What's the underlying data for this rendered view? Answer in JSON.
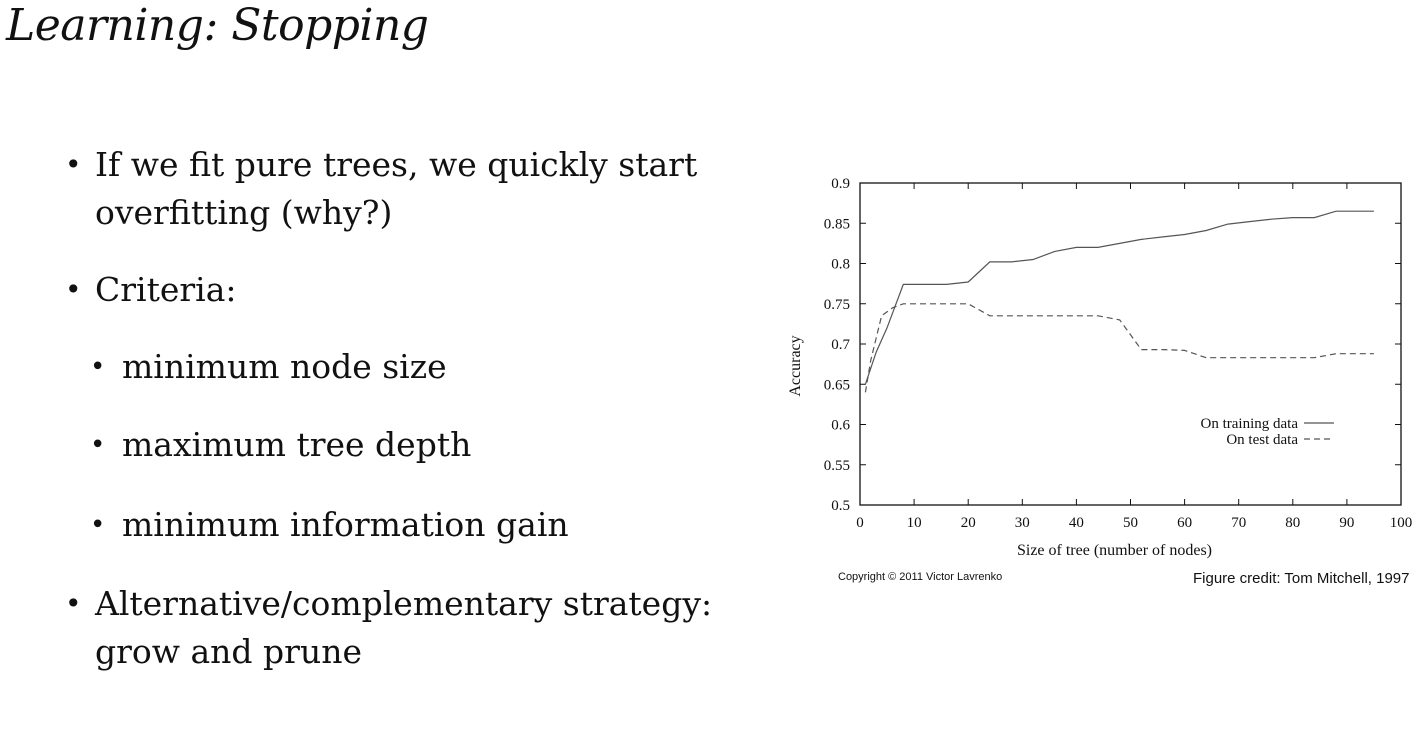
{
  "slide": {
    "title": "Learning: Stopping",
    "bullets": [
      {
        "level": 1,
        "lines": [
          "If we fit pure trees, we quickly start",
          "overfitting (why?)"
        ]
      },
      {
        "level": 1,
        "lines": [
          "Criteria:"
        ]
      },
      {
        "level": 2,
        "lines": [
          "minimum node size"
        ]
      },
      {
        "level": 2,
        "lines": [
          "maximum tree depth"
        ]
      },
      {
        "level": 2,
        "lines": [
          "minimum information gain"
        ]
      },
      {
        "level": 1,
        "lines": [
          "Alternative/complementary strategy:",
          "grow and prune"
        ]
      }
    ],
    "bullet_glyph": "•"
  },
  "credits": {
    "copyright": "Copyright © 2011 Victor Lavrenko",
    "figure_credit": "Figure credit: Tom Mitchell, 1997"
  },
  "chart_data": {
    "type": "line",
    "title": "",
    "xlabel": "Size of tree (number of nodes)",
    "ylabel": "Accuracy",
    "xlim": [
      0,
      100
    ],
    "ylim": [
      0.5,
      0.9
    ],
    "xticks": [
      0,
      10,
      20,
      30,
      40,
      50,
      60,
      70,
      80,
      90,
      100
    ],
    "yticks": [
      0.5,
      0.55,
      0.6,
      0.65,
      0.7,
      0.75,
      0.8,
      0.85,
      0.9
    ],
    "grid": false,
    "legend": "right, inside plot",
    "series": [
      {
        "name": "On training data",
        "style": "solid",
        "color": "#555555",
        "x": [
          1,
          3,
          5,
          8,
          12,
          16,
          20,
          24,
          28,
          32,
          36,
          40,
          44,
          48,
          52,
          56,
          60,
          64,
          68,
          72,
          76,
          80,
          84,
          88,
          92,
          95
        ],
        "y": [
          0.65,
          0.69,
          0.72,
          0.774,
          0.774,
          0.774,
          0.777,
          0.802,
          0.802,
          0.805,
          0.815,
          0.82,
          0.82,
          0.825,
          0.83,
          0.833,
          0.836,
          0.841,
          0.849,
          0.852,
          0.855,
          0.857,
          0.857,
          0.865,
          0.865,
          0.865
        ]
      },
      {
        "name": "On test data",
        "style": "dashed",
        "color": "#555555",
        "x": [
          1,
          2,
          4,
          6,
          8,
          12,
          16,
          20,
          24,
          28,
          32,
          36,
          40,
          44,
          48,
          52,
          56,
          60,
          64,
          68,
          72,
          76,
          80,
          84,
          88,
          92,
          95
        ],
        "y": [
          0.64,
          0.68,
          0.735,
          0.745,
          0.75,
          0.75,
          0.75,
          0.75,
          0.735,
          0.735,
          0.735,
          0.735,
          0.735,
          0.735,
          0.73,
          0.693,
          0.693,
          0.692,
          0.683,
          0.683,
          0.683,
          0.683,
          0.683,
          0.683,
          0.688,
          0.688,
          0.688
        ]
      }
    ]
  }
}
